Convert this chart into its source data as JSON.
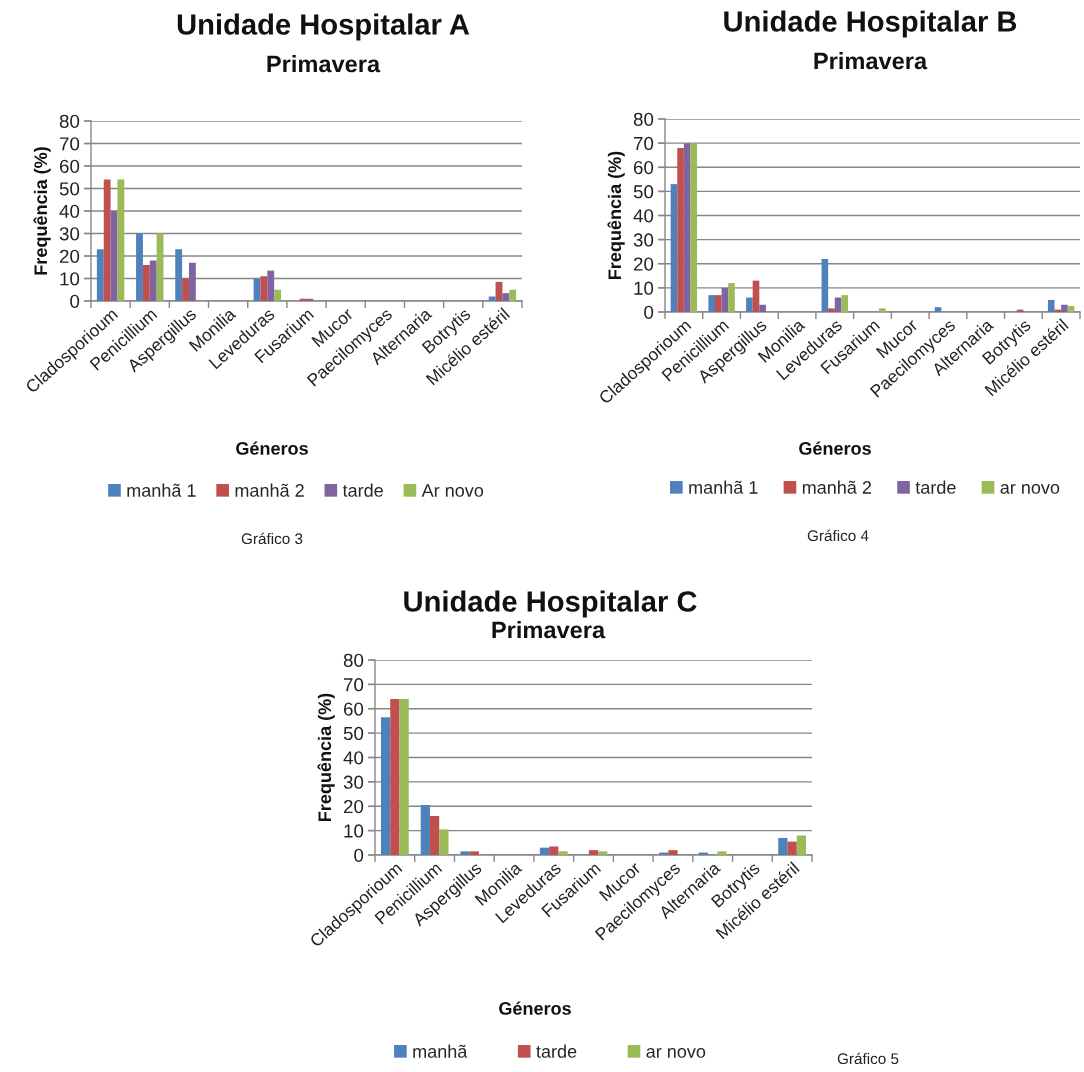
{
  "chart_data": [
    {
      "type": "bar",
      "title": "Unidade Hospitalar A",
      "subtitle": "Primavera",
      "xlabel": "Géneros",
      "ylabel": "Frequência (%)",
      "categories": [
        "Cladosporioum",
        "Penicillium",
        "Aspergillus",
        "Monilia",
        "Leveduras",
        "Fusarium",
        "Mucor",
        "Paecilomyces",
        "Alternaria",
        "Botrytis",
        "Micélio estéril"
      ],
      "series": [
        {
          "name": "manhã 1",
          "color": "#4f81bd",
          "values": [
            23,
            30,
            23,
            0,
            10,
            0,
            0,
            0,
            0,
            0,
            2
          ]
        },
        {
          "name": "manhã 2",
          "color": "#c0504d",
          "values": [
            54,
            16,
            10,
            0,
            11,
            1,
            0,
            0,
            0,
            0,
            8.5
          ]
        },
        {
          "name": "tarde",
          "color": "#8064a2",
          "values": [
            40,
            18,
            17,
            0,
            13.5,
            1,
            0,
            0,
            0,
            0,
            3.5
          ]
        },
        {
          "name": "Ar novo",
          "color": "#9bbb59",
          "values": [
            54,
            30,
            0,
            0,
            5,
            0,
            0,
            0,
            0,
            0,
            5
          ]
        }
      ],
      "ylim": [
        0,
        80
      ],
      "yticks": [
        0,
        10,
        20,
        30,
        40,
        50,
        60,
        70,
        80
      ],
      "grid": "y",
      "legend": "bottom",
      "annotations": [
        "Gráfico 3"
      ]
    },
    {
      "type": "bar",
      "title": "Unidade Hospitalar B",
      "subtitle": "Primavera",
      "xlabel": "Géneros",
      "ylabel": "Frequência (%)",
      "categories": [
        "Cladosporioum",
        "Penicillium",
        "Aspergillus",
        "Monilia",
        "Leveduras",
        "Fusarium",
        "Mucor",
        "Paecilomyces",
        "Alternaria",
        "Botrytis",
        "Micélio estéril"
      ],
      "series": [
        {
          "name": "manhã 1",
          "color": "#4f81bd",
          "values": [
            53,
            7,
            6,
            0,
            22,
            0,
            0,
            2,
            0,
            0,
            5
          ]
        },
        {
          "name": "manhã 2",
          "color": "#c0504d",
          "values": [
            68,
            7,
            13,
            0,
            1.5,
            0,
            0,
            0,
            0,
            1,
            1
          ]
        },
        {
          "name": "tarde",
          "color": "#8064a2",
          "values": [
            70,
            10,
            3,
            0,
            6,
            0,
            0,
            0,
            0,
            0,
            3
          ]
        },
        {
          "name": "ar novo",
          "color": "#9bbb59",
          "values": [
            70,
            12,
            0,
            0,
            7,
            1.5,
            0,
            0,
            0,
            0,
            2.5
          ]
        }
      ],
      "ylim": [
        0,
        80
      ],
      "yticks": [
        0,
        10,
        20,
        30,
        40,
        50,
        60,
        70,
        80
      ],
      "grid": "y",
      "legend": "bottom",
      "annotations": [
        "Gráfico 4"
      ]
    },
    {
      "type": "bar",
      "title": "Unidade Hospitalar C",
      "subtitle": "Primavera",
      "xlabel": "Géneros",
      "ylabel": "Frequência (%)",
      "categories": [
        "Cladosporioum",
        "Penicillium",
        "Aspergillus",
        "Monilia",
        "Leveduras",
        "Fusarium",
        "Mucor",
        "Paecilomyces",
        "Alternaria",
        "Botrytis",
        "Micélio estéril"
      ],
      "series": [
        {
          "name": "manhã",
          "color": "#4f81bd",
          "values": [
            56.5,
            20.5,
            1.5,
            0,
            3,
            0,
            0,
            1,
            1,
            0,
            7
          ]
        },
        {
          "name": "tarde",
          "color": "#c0504d",
          "values": [
            64,
            16,
            1.5,
            0,
            3.5,
            2,
            0,
            2,
            0,
            0,
            5.5
          ]
        },
        {
          "name": "ar novo",
          "color": "#9bbb59",
          "values": [
            64,
            10.5,
            0,
            0,
            1.5,
            1.5,
            0,
            0,
            1.5,
            0,
            8
          ]
        }
      ],
      "ylim": [
        0,
        80
      ],
      "yticks": [
        0,
        10,
        20,
        30,
        40,
        50,
        60,
        70,
        80
      ],
      "grid": "y",
      "legend": "bottom",
      "annotations": [
        "Gráfico 5"
      ]
    }
  ]
}
